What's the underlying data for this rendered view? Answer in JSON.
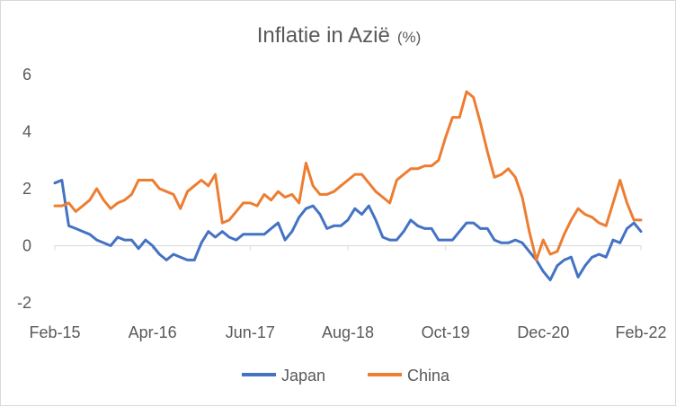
{
  "chart_data": {
    "type": "line",
    "title": "Inflatie in Azië",
    "title_unit": "(%)",
    "xlabel": "",
    "ylabel": "",
    "ylim": [
      -2,
      6
    ],
    "yticks": [
      -2,
      0,
      2,
      4,
      6
    ],
    "ytick_labels": [
      "-2",
      "0",
      "2",
      "4",
      "6"
    ],
    "xtick_labels": [
      "Feb-15",
      "Apr-16",
      "Jun-17",
      "Aug-18",
      "Oct-19",
      "Dec-20",
      "Feb-22"
    ],
    "x_start": "2015-02",
    "x_end": "2022-02",
    "grid": false,
    "legend_position": "bottom",
    "series": [
      {
        "name": "Japan",
        "color": "#4472C4",
        "values": [
          2.2,
          2.3,
          0.7,
          0.6,
          0.5,
          0.4,
          0.2,
          0.1,
          0.0,
          0.3,
          0.2,
          0.2,
          -0.1,
          0.2,
          0.0,
          -0.3,
          -0.5,
          -0.3,
          -0.4,
          -0.5,
          -0.5,
          0.1,
          0.5,
          0.3,
          0.5,
          0.3,
          0.2,
          0.4,
          0.4,
          0.4,
          0.4,
          0.6,
          0.8,
          0.2,
          0.5,
          1.0,
          1.3,
          1.4,
          1.1,
          0.6,
          0.7,
          0.7,
          0.9,
          1.3,
          1.1,
          1.4,
          0.9,
          0.3,
          0.2,
          0.2,
          0.5,
          0.9,
          0.7,
          0.6,
          0.6,
          0.2,
          0.2,
          0.2,
          0.5,
          0.8,
          0.8,
          0.6,
          0.6,
          0.2,
          0.1,
          0.1,
          0.2,
          0.1,
          -0.2,
          -0.5,
          -0.9,
          -1.2,
          -0.7,
          -0.5,
          -0.4,
          -1.1,
          -0.7,
          -0.4,
          -0.3,
          -0.4,
          0.2,
          0.1,
          0.6,
          0.8,
          0.5
        ]
      },
      {
        "name": "China",
        "color": "#ED7D31",
        "values": [
          1.4,
          1.4,
          1.5,
          1.2,
          1.4,
          1.6,
          2.0,
          1.6,
          1.3,
          1.5,
          1.6,
          1.8,
          2.3,
          2.3,
          2.3,
          2.0,
          1.9,
          1.8,
          1.3,
          1.9,
          2.1,
          2.3,
          2.1,
          2.5,
          0.8,
          0.9,
          1.2,
          1.5,
          1.5,
          1.4,
          1.8,
          1.6,
          1.9,
          1.7,
          1.8,
          1.5,
          2.9,
          2.1,
          1.8,
          1.8,
          1.9,
          2.1,
          2.3,
          2.5,
          2.5,
          2.2,
          1.9,
          1.7,
          1.5,
          2.3,
          2.5,
          2.7,
          2.7,
          2.8,
          2.8,
          3.0,
          3.8,
          4.5,
          4.5,
          5.4,
          5.2,
          4.3,
          3.3,
          2.4,
          2.5,
          2.7,
          2.4,
          1.7,
          0.5,
          -0.5,
          0.2,
          -0.3,
          -0.2,
          0.4,
          0.9,
          1.3,
          1.1,
          1.0,
          0.8,
          0.7,
          1.5,
          2.3,
          1.5,
          0.9,
          0.9
        ]
      }
    ]
  }
}
